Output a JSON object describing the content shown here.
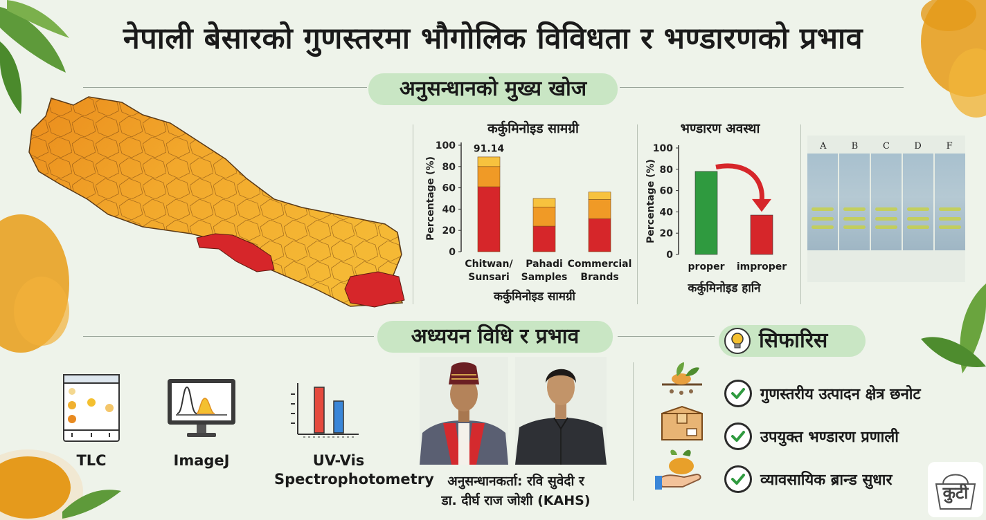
{
  "title": "नेपाली बेसारको गुणस्तरमा भौगोलिक विविधता र भण्डारणको प्रभाव",
  "sections": {
    "findings": "अनुसन्धानको मुख्य खोज",
    "methods": "अध्ययन विधि र प्रभाव",
    "recommendations": "सिफारिस"
  },
  "chart_data": [
    {
      "type": "bar",
      "stacked": true,
      "title": "कर्कुमिनोइड सामग्री",
      "xlabel": "कर्कुमिनोइड सामग्री",
      "ylabel": "Percentage (%)",
      "ylim": [
        0,
        100
      ],
      "yticks": [
        "0",
        "20",
        "40",
        "60",
        "80",
        "100"
      ],
      "categories": [
        "Chitwan/ Sunsari",
        "Pahadi Samples",
        "Commercial Brands"
      ],
      "annotation": "91.14",
      "segments": [
        {
          "values": [
            61,
            24,
            31
          ],
          "color": "#d6262a"
        },
        {
          "values": [
            19,
            18,
            18
          ],
          "color": "#f09a26"
        },
        {
          "values": [
            9,
            8,
            7
          ],
          "color": "#f7c23e"
        }
      ]
    },
    {
      "type": "bar",
      "title": "भण्डारण अवस्था",
      "xlabel": "कर्कुमिनोइड हानि",
      "ylabel": "Percentage (%)",
      "ylim": [
        0,
        100
      ],
      "yticks": [
        "0",
        "20",
        "40",
        "60",
        "80",
        "100"
      ],
      "categories": [
        "proper",
        "improper"
      ],
      "values": [
        78,
        37
      ],
      "colors": [
        "#2f9a3f",
        "#d6262a"
      ]
    }
  ],
  "tlc_lanes": [
    "A",
    "B",
    "C",
    "D",
    "F"
  ],
  "methods": [
    {
      "label": "TLC",
      "icon": "tlc-plate-icon"
    },
    {
      "label": "ImageJ",
      "icon": "monitor-icon"
    },
    {
      "label": "UV-Vis Spectrophotometry",
      "icon": "bar-chart-icon"
    }
  ],
  "researchers": {
    "line1": "अनुसन्धानकर्ता: रवि सुवेदी र",
    "line2": "डा. दीर्घ राज जोशी (KAHS)"
  },
  "recommendation_items": [
    {
      "label": "गुणस्तरीय उत्पादन क्षेत्र छनोट",
      "icon": "plant-icon"
    },
    {
      "label": "उपयुक्त भण्डारण प्रणाली",
      "icon": "box-icon"
    },
    {
      "label": "व्यावसायिक ब्रान्ड सुधार",
      "icon": "hand-plant-icon"
    }
  ],
  "logo_text": "कुटी",
  "colors": {
    "highlight": "#d6262a",
    "orange": "#f09a26",
    "yellow": "#f7c23e",
    "green": "#2f9a3f",
    "pill": "#c9e6c4"
  }
}
